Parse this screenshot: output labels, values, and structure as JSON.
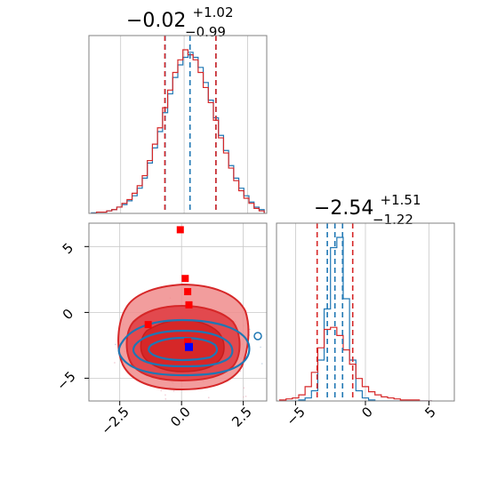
{
  "chart_data": [
    {
      "type": "histogram",
      "panel": "top-left",
      "title": {
        "main": "−0.02",
        "sup": "+1.02",
        "sub": "−0.99"
      },
      "xlim": [
        -4,
        3
      ],
      "x": [
        -3.8,
        -3.6,
        -3.4,
        -3.2,
        -3.0,
        -2.8,
        -2.6,
        -2.4,
        -2.2,
        -2.0,
        -1.8,
        -1.6,
        -1.4,
        -1.2,
        -1.0,
        -0.8,
        -0.6,
        -0.4,
        -0.2,
        0.0,
        0.2,
        0.4,
        0.6,
        0.8,
        1.0,
        1.2,
        1.4,
        1.6,
        1.8,
        2.0,
        2.2,
        2.4,
        2.6,
        2.8
      ],
      "series": [
        {
          "color": "#1f77b4",
          "values": [
            0.5,
            1,
            1,
            2,
            3,
            5,
            7,
            10,
            14,
            20,
            28,
            40,
            52,
            65,
            80,
            95,
            108,
            118,
            124,
            128,
            124,
            116,
            104,
            90,
            76,
            62,
            50,
            38,
            28,
            20,
            14,
            9,
            5,
            3
          ]
        },
        {
          "color": "#d62728",
          "values": [
            0,
            1,
            1,
            2,
            3,
            5,
            8,
            11,
            16,
            22,
            30,
            42,
            55,
            68,
            84,
            98,
            112,
            122,
            130,
            126,
            122,
            112,
            100,
            88,
            74,
            60,
            48,
            36,
            26,
            18,
            12,
            8,
            4,
            2
          ]
        }
      ],
      "quantile_lines": [
        {
          "color": "#1f77b4",
          "x": [
            -1.0,
            -0.02,
            1.0
          ]
        },
        {
          "color": "#d62728",
          "x": [
            -1.01,
            1.0
          ]
        }
      ]
    },
    {
      "type": "scatter-contour",
      "panel": "bottom-left",
      "xlim": [
        -4,
        3.2
      ],
      "ylim": [
        -6.5,
        7
      ],
      "xticks": [
        "−2.5",
        "0.0",
        "2.5"
      ],
      "yticks": [
        "−5",
        "0",
        "5"
      ],
      "series": [
        {
          "color": "#1f77b4",
          "center": [
            0,
            -2.5
          ],
          "spread": [
            1.0,
            0.6
          ],
          "marker": [
            0.05,
            -2.4
          ]
        },
        {
          "color": "#d62728",
          "center": [
            0,
            -2.5
          ],
          "spread": [
            1.0,
            1.2
          ],
          "markers": [
            [
              -0.3,
              6.5
            ],
            [
              -0.1,
              2.8
            ],
            [
              0.0,
              1.8
            ],
            [
              0.05,
              0.8
            ],
            [
              -1.6,
              -0.7
            ],
            [
              0.0,
              -2.0
            ]
          ]
        }
      ]
    },
    {
      "type": "histogram",
      "panel": "bottom-right",
      "title": {
        "main": "−2.54",
        "sup": "+1.51",
        "sub": "−1.22"
      },
      "xlim": [
        -7,
        7
      ],
      "xticks": [
        "−5",
        "0",
        "5"
      ],
      "x": [
        -6.5,
        -6,
        -5.5,
        -5,
        -4.5,
        -4,
        -3.5,
        -3,
        -2.5,
        -2,
        -1.5,
        -1,
        -0.5,
        0,
        0.5,
        1,
        1.5,
        2,
        2.5,
        3,
        3.5,
        4,
        4.5,
        5
      ],
      "series": [
        {
          "color": "#1f77b4",
          "values": [
            0,
            0,
            0,
            1,
            3,
            10,
            40,
            90,
            150,
            160,
            100,
            40,
            10,
            3,
            1,
            0,
            0,
            0,
            0,
            0,
            0,
            0,
            0,
            0
          ]
        },
        {
          "color": "#d62728",
          "values": [
            1,
            2,
            3,
            6,
            14,
            28,
            52,
            70,
            72,
            64,
            50,
            36,
            22,
            14,
            9,
            6,
            4,
            3,
            2,
            1,
            1,
            1,
            0,
            0
          ]
        }
      ],
      "quantile_lines": [
        {
          "color": "#1f77b4",
          "x": [
            -3.0,
            -2.4,
            -1.8
          ]
        },
        {
          "color": "#d62728",
          "x": [
            -3.8,
            -1.0
          ]
        }
      ]
    }
  ]
}
